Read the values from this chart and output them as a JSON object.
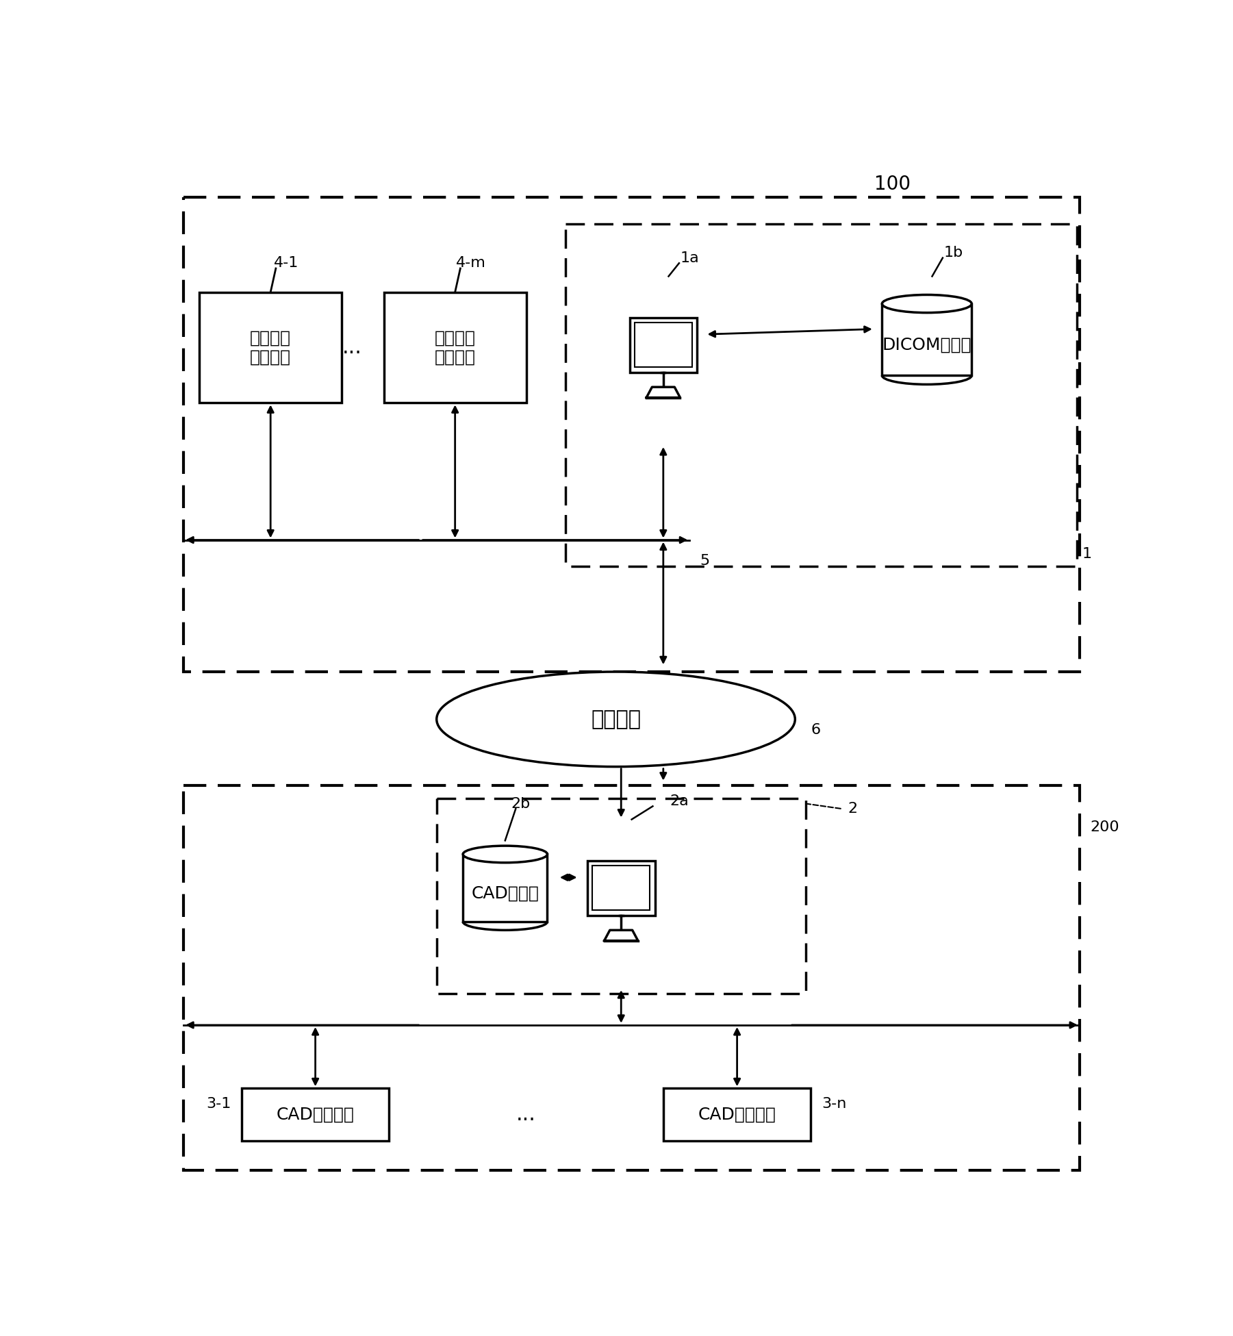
{
  "bg_color": "#ffffff",
  "label_100": "100",
  "label_200": "200",
  "label_1": "1",
  "label_2": "2",
  "label_5": "5",
  "label_6": "6",
  "network_text": "通信网络",
  "label_4_1": "4-1",
  "label_4_m": "4-m",
  "text_41": "医用图像\n诊断装置",
  "text_4m": "医用图像\n诊断装置",
  "label_1a": "1a",
  "label_1b": "1b",
  "text_1b": "DICOM数据库",
  "label_2a": "2a",
  "label_2b": "2b",
  "text_2b": "CAD数据库",
  "label_3_1": "3-1",
  "label_3_n": "3-n",
  "text_31": "CAD处理装置",
  "text_3n": "CAD处理装置",
  "dots": "...",
  "line_color": "#000000",
  "fill_color": "#ffffff",
  "fs_main": 18,
  "fs_label": 16,
  "fs_dots": 22
}
